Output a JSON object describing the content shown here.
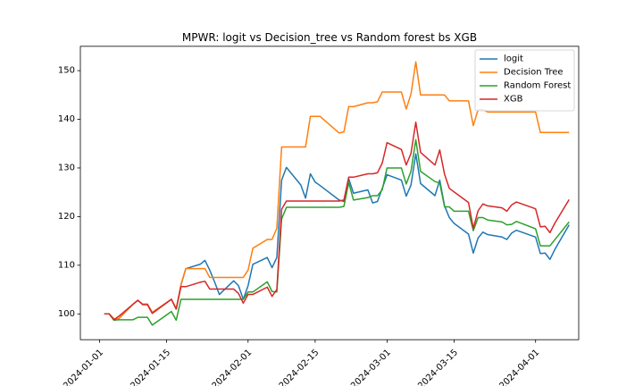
{
  "chart_data": {
    "type": "line",
    "title": "MPWR: logit vs Decision_tree vs Random forest bs XGB",
    "xlabel": "",
    "ylabel": "",
    "x_axis": {
      "type": "date",
      "range": [
        "2023-12-28",
        "2024-04-10"
      ],
      "ticks": [
        "2024-01-01",
        "2024-01-15",
        "2024-02-01",
        "2024-02-15",
        "2024-03-01",
        "2024-03-15",
        "2024-04-01"
      ]
    },
    "y_axis": {
      "range": [
        94.7,
        155.0
      ],
      "ticks": [
        100,
        110,
        120,
        130,
        140,
        150
      ]
    },
    "grid": false,
    "legend": "top-right",
    "series": [
      {
        "name": "logit",
        "color": "#1f77b4",
        "points": [
          [
            "2024-01-02",
            100
          ],
          [
            "2024-01-03",
            100
          ],
          [
            "2024-01-04",
            99
          ],
          [
            "2024-01-05",
            99
          ],
          [
            "2024-01-08",
            102
          ],
          [
            "2024-01-09",
            102.8
          ],
          [
            "2024-01-10",
            102
          ],
          [
            "2024-01-11",
            102
          ],
          [
            "2024-01-12",
            100.3
          ],
          [
            "2024-01-16",
            103
          ],
          [
            "2024-01-17",
            101
          ],
          [
            "2024-01-18",
            106
          ],
          [
            "2024-01-19",
            109.3
          ],
          [
            "2024-01-22",
            110.2
          ],
          [
            "2024-01-23",
            111
          ],
          [
            "2024-01-24",
            109
          ],
          [
            "2024-01-25",
            106.6
          ],
          [
            "2024-01-26",
            104
          ],
          [
            "2024-01-29",
            106.8
          ],
          [
            "2024-01-30",
            105.8
          ],
          [
            "2024-01-31",
            103
          ],
          [
            "2024-02-01",
            105.8
          ],
          [
            "2024-02-02",
            110.2
          ],
          [
            "2024-02-05",
            111.6
          ],
          [
            "2024-02-06",
            109.5
          ],
          [
            "2024-02-07",
            111.6
          ],
          [
            "2024-02-08",
            127.5
          ],
          [
            "2024-02-09",
            130.1
          ],
          [
            "2024-02-12",
            126.5
          ],
          [
            "2024-02-13",
            123.8
          ],
          [
            "2024-02-14",
            128.8
          ],
          [
            "2024-02-15",
            127.1
          ],
          [
            "2024-02-16",
            126.4
          ],
          [
            "2024-02-20",
            123.4
          ],
          [
            "2024-02-21",
            123.1
          ],
          [
            "2024-02-22",
            127.8
          ],
          [
            "2024-02-23",
            124.8
          ],
          [
            "2024-02-26",
            125.5
          ],
          [
            "2024-02-27",
            122.8
          ],
          [
            "2024-02-28",
            123.1
          ],
          [
            "2024-02-29",
            125.8
          ],
          [
            "2024-03-01",
            128.6
          ],
          [
            "2024-03-04",
            127.5
          ],
          [
            "2024-03-05",
            124.2
          ],
          [
            "2024-03-06",
            126.5
          ],
          [
            "2024-03-07",
            132.9
          ],
          [
            "2024-03-08",
            126.8
          ],
          [
            "2024-03-11",
            124.3
          ],
          [
            "2024-03-12",
            127.5
          ],
          [
            "2024-03-13",
            122.2
          ],
          [
            "2024-03-14",
            119.8
          ],
          [
            "2024-03-15",
            118.6
          ],
          [
            "2024-03-18",
            116.4
          ],
          [
            "2024-03-19",
            112.5
          ],
          [
            "2024-03-20",
            115.6
          ],
          [
            "2024-03-21",
            116.8
          ],
          [
            "2024-03-22",
            116.3
          ],
          [
            "2024-03-25",
            115.8
          ],
          [
            "2024-03-26",
            115.3
          ],
          [
            "2024-03-27",
            116.6
          ],
          [
            "2024-03-28",
            117.2
          ],
          [
            "2024-04-01",
            115.8
          ],
          [
            "2024-04-02",
            112.4
          ],
          [
            "2024-04-03",
            112.5
          ],
          [
            "2024-04-04",
            111.2
          ],
          [
            "2024-04-05",
            113.2
          ],
          [
            "2024-04-08",
            118.3
          ]
        ]
      },
      {
        "name": "Decision Tree",
        "color": "#ff7f0e",
        "points": [
          [
            "2024-01-02",
            100
          ],
          [
            "2024-01-03",
            100
          ],
          [
            "2024-01-04",
            99
          ],
          [
            "2024-01-05",
            99
          ],
          [
            "2024-01-08",
            102
          ],
          [
            "2024-01-09",
            102.8
          ],
          [
            "2024-01-10",
            102
          ],
          [
            "2024-01-11",
            102
          ],
          [
            "2024-01-12",
            100.3
          ],
          [
            "2024-01-16",
            103
          ],
          [
            "2024-01-17",
            101
          ],
          [
            "2024-01-18",
            106
          ],
          [
            "2024-01-19",
            109.3
          ],
          [
            "2024-01-22",
            109.3
          ],
          [
            "2024-01-23",
            109.3
          ],
          [
            "2024-01-24",
            107.5
          ],
          [
            "2024-01-25",
            107.5
          ],
          [
            "2024-01-31",
            107.5
          ],
          [
            "2024-02-01",
            109
          ],
          [
            "2024-02-02",
            113.5
          ],
          [
            "2024-02-05",
            115.3
          ],
          [
            "2024-02-06",
            115.3
          ],
          [
            "2024-02-07",
            117.6
          ],
          [
            "2024-02-08",
            134.3
          ],
          [
            "2024-02-13",
            134.3
          ],
          [
            "2024-02-14",
            140.6
          ],
          [
            "2024-02-15",
            140.6
          ],
          [
            "2024-02-16",
            140.6
          ],
          [
            "2024-02-20",
            137.2
          ],
          [
            "2024-02-21",
            137.4
          ],
          [
            "2024-02-22",
            142.6
          ],
          [
            "2024-02-23",
            142.6
          ],
          [
            "2024-02-26",
            143.4
          ],
          [
            "2024-02-27",
            143.4
          ],
          [
            "2024-02-28",
            143.6
          ],
          [
            "2024-02-29",
            145.6
          ],
          [
            "2024-03-01",
            145.6
          ],
          [
            "2024-03-04",
            145.6
          ],
          [
            "2024-03-05",
            142.1
          ],
          [
            "2024-03-06",
            145.2
          ],
          [
            "2024-03-07",
            151.8
          ],
          [
            "2024-03-08",
            145
          ],
          [
            "2024-03-13",
            145
          ],
          [
            "2024-03-14",
            143.8
          ],
          [
            "2024-03-15",
            143.8
          ],
          [
            "2024-03-18",
            143.8
          ],
          [
            "2024-03-19",
            138.7
          ],
          [
            "2024-03-20",
            142
          ],
          [
            "2024-03-21",
            142
          ],
          [
            "2024-03-22",
            141.5
          ],
          [
            "2024-04-01",
            141.5
          ],
          [
            "2024-04-02",
            137.3
          ],
          [
            "2024-04-08",
            137.3
          ]
        ]
      },
      {
        "name": "Random Forest",
        "color": "#2ca02c",
        "points": [
          [
            "2024-01-02",
            100
          ],
          [
            "2024-01-03",
            100
          ],
          [
            "2024-01-04",
            98.7
          ],
          [
            "2024-01-05",
            98.8
          ],
          [
            "2024-01-08",
            98.8
          ],
          [
            "2024-01-09",
            99.3
          ],
          [
            "2024-01-10",
            99.3
          ],
          [
            "2024-01-11",
            99.3
          ],
          [
            "2024-01-12",
            97.7
          ],
          [
            "2024-01-16",
            100.5
          ],
          [
            "2024-01-17",
            98.7
          ],
          [
            "2024-01-18",
            103
          ],
          [
            "2024-01-31",
            103
          ],
          [
            "2024-02-01",
            104.5
          ],
          [
            "2024-02-02",
            104.5
          ],
          [
            "2024-02-05",
            106.6
          ],
          [
            "2024-02-06",
            104.6
          ],
          [
            "2024-02-07",
            104.5
          ],
          [
            "2024-02-08",
            119.5
          ],
          [
            "2024-02-09",
            121.9
          ],
          [
            "2024-02-12",
            121.9
          ],
          [
            "2024-02-20",
            121.9
          ],
          [
            "2024-02-21",
            122.1
          ],
          [
            "2024-02-22",
            127
          ],
          [
            "2024-02-23",
            123.4
          ],
          [
            "2024-02-26",
            123.9
          ],
          [
            "2024-02-27",
            124.3
          ],
          [
            "2024-02-28",
            124.3
          ],
          [
            "2024-02-29",
            125.5
          ],
          [
            "2024-03-01",
            130
          ],
          [
            "2024-03-04",
            130
          ],
          [
            "2024-03-05",
            126.7
          ],
          [
            "2024-03-06",
            129.3
          ],
          [
            "2024-03-07",
            135.8
          ],
          [
            "2024-03-08",
            129.3
          ],
          [
            "2024-03-11",
            127.2
          ],
          [
            "2024-03-12",
            126.9
          ],
          [
            "2024-03-13",
            122
          ],
          [
            "2024-03-14",
            122
          ],
          [
            "2024-03-15",
            121.1
          ],
          [
            "2024-03-18",
            121.1
          ],
          [
            "2024-03-19",
            117.1
          ],
          [
            "2024-03-20",
            119.8
          ],
          [
            "2024-03-21",
            119.8
          ],
          [
            "2024-03-22",
            119.3
          ],
          [
            "2024-03-25",
            118.9
          ],
          [
            "2024-03-26",
            118.3
          ],
          [
            "2024-03-27",
            118.4
          ],
          [
            "2024-03-28",
            119
          ],
          [
            "2024-04-01",
            117.5
          ],
          [
            "2024-04-02",
            114
          ],
          [
            "2024-04-04",
            114
          ],
          [
            "2024-04-08",
            118.9
          ]
        ]
      },
      {
        "name": "XGB",
        "color": "#d62728",
        "points": [
          [
            "2024-01-02",
            100
          ],
          [
            "2024-01-03",
            100
          ],
          [
            "2024-01-04",
            98.8
          ],
          [
            "2024-01-05",
            99.5
          ],
          [
            "2024-01-08",
            102
          ],
          [
            "2024-01-09",
            102.8
          ],
          [
            "2024-01-10",
            101.9
          ],
          [
            "2024-01-11",
            101.9
          ],
          [
            "2024-01-12",
            100.1
          ],
          [
            "2024-01-16",
            103
          ],
          [
            "2024-01-17",
            101
          ],
          [
            "2024-01-18",
            105.6
          ],
          [
            "2024-01-19",
            105.6
          ],
          [
            "2024-01-22",
            106.5
          ],
          [
            "2024-01-23",
            106.7
          ],
          [
            "2024-01-24",
            105.1
          ],
          [
            "2024-01-29",
            105.1
          ],
          [
            "2024-01-30",
            104.2
          ],
          [
            "2024-01-31",
            102.2
          ],
          [
            "2024-02-01",
            104
          ],
          [
            "2024-02-02",
            104
          ],
          [
            "2024-02-05",
            105.5
          ],
          [
            "2024-02-06",
            103.6
          ],
          [
            "2024-02-07",
            105
          ],
          [
            "2024-02-08",
            121.5
          ],
          [
            "2024-02-09",
            123.2
          ],
          [
            "2024-02-20",
            123.2
          ],
          [
            "2024-02-21",
            123.4
          ],
          [
            "2024-02-22",
            128.1
          ],
          [
            "2024-02-23",
            128.1
          ],
          [
            "2024-02-26",
            128.8
          ],
          [
            "2024-02-27",
            128.8
          ],
          [
            "2024-02-28",
            129
          ],
          [
            "2024-02-29",
            131
          ],
          [
            "2024-03-01",
            135.2
          ],
          [
            "2024-03-04",
            133.8
          ],
          [
            "2024-03-05",
            130.6
          ],
          [
            "2024-03-06",
            133
          ],
          [
            "2024-03-07",
            139.4
          ],
          [
            "2024-03-08",
            133.2
          ],
          [
            "2024-03-11",
            130.6
          ],
          [
            "2024-03-12",
            133.7
          ],
          [
            "2024-03-13",
            128.7
          ],
          [
            "2024-03-14",
            125.8
          ],
          [
            "2024-03-18",
            122.9
          ],
          [
            "2024-03-19",
            117.6
          ],
          [
            "2024-03-20",
            121.2
          ],
          [
            "2024-03-21",
            122.6
          ],
          [
            "2024-03-22",
            122.2
          ],
          [
            "2024-03-25",
            121.8
          ],
          [
            "2024-03-26",
            121.1
          ],
          [
            "2024-03-27",
            122.4
          ],
          [
            "2024-03-28",
            123
          ],
          [
            "2024-04-01",
            121.6
          ],
          [
            "2024-04-02",
            117.9
          ],
          [
            "2024-04-03",
            118
          ],
          [
            "2024-04-04",
            116.7
          ],
          [
            "2024-04-05",
            118.6
          ],
          [
            "2024-04-08",
            123.5
          ]
        ]
      }
    ]
  }
}
